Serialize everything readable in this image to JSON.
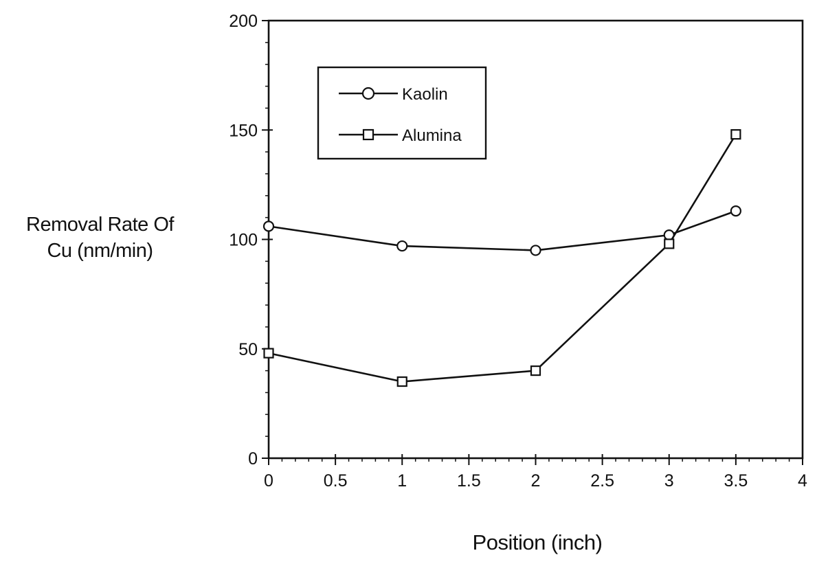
{
  "chart_data": {
    "type": "line",
    "title": "",
    "xlabel": "Position (inch)",
    "ylabel_lines": [
      "Removal Rate Of",
      "Cu (nm/min)"
    ],
    "xlim": [
      0,
      4
    ],
    "ylim": [
      0,
      200
    ],
    "x_ticks": [
      0,
      0.5,
      1,
      1.5,
      2,
      2.5,
      3,
      3.5,
      4
    ],
    "x_tick_labels": [
      "0",
      "0.5",
      "1",
      "1.5",
      "2",
      "2.5",
      "3",
      "3.5",
      "4"
    ],
    "y_ticks": [
      0,
      50,
      100,
      150,
      200
    ],
    "y_tick_labels": [
      "0",
      "50",
      "100",
      "150",
      "200"
    ],
    "grid": false,
    "legend_position": "top-left",
    "series": [
      {
        "name": "Kaolin",
        "marker": "circle",
        "x": [
          0,
          1,
          2,
          3,
          3.5
        ],
        "values": [
          106,
          97,
          95,
          102,
          113
        ]
      },
      {
        "name": "Alumina",
        "marker": "square",
        "x": [
          0,
          1,
          2,
          3,
          3.5
        ],
        "values": [
          48,
          35,
          40,
          98,
          148
        ]
      }
    ],
    "line_color": "#111111"
  }
}
